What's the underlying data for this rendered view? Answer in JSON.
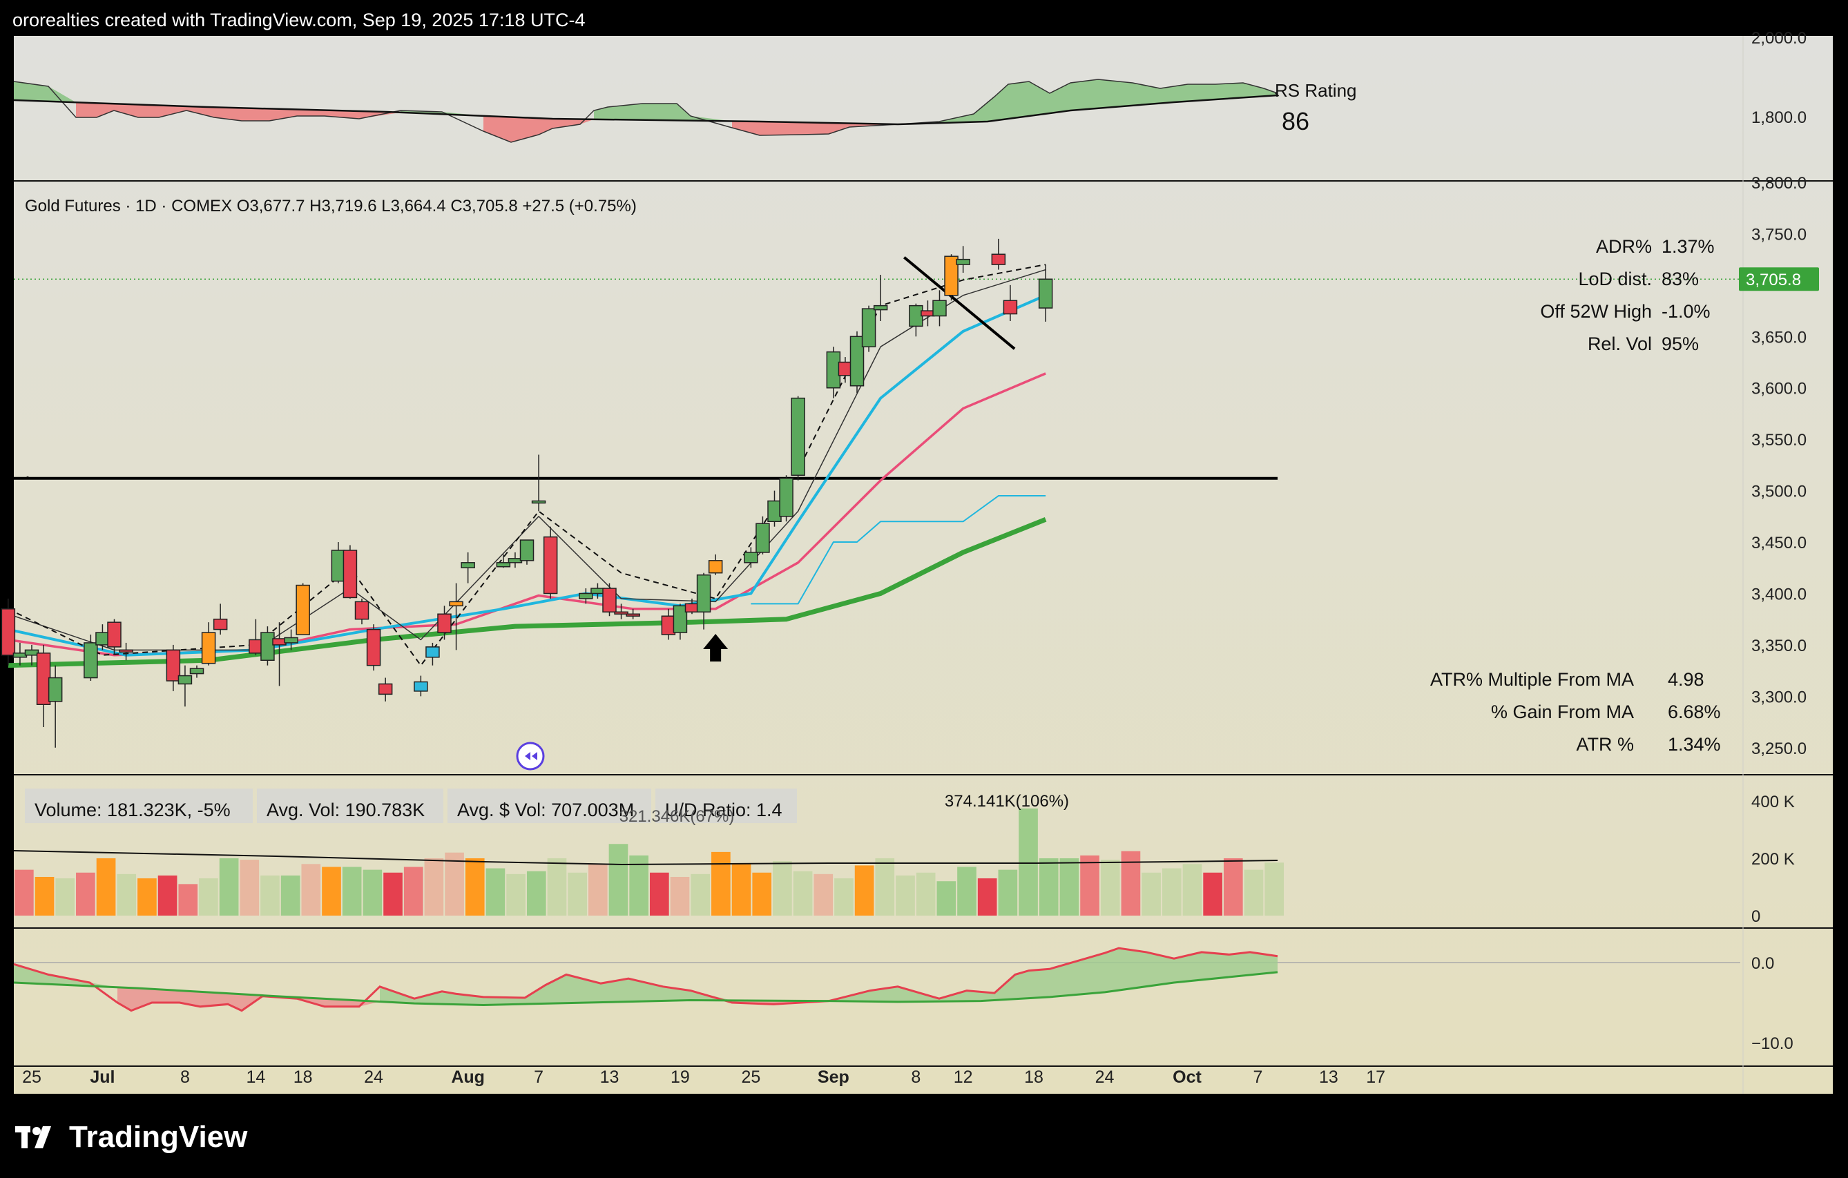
{
  "header": {
    "credit": "ororealties created with TradingView.com, Sep 19, 2025 17:18 UTC-4"
  },
  "brand": {
    "name": "TradingView",
    "icon": "tradingview-logo-icon"
  },
  "colors": {
    "bull_candle": "#5ba85c",
    "bear_candle": "#e5404f",
    "orange_candle": "#ff9a1f",
    "cyan_candle": "#2fb8dc",
    "ma_black": "#000000",
    "ma_cyan": "#1fb6de",
    "ma_pink": "#ea4d78",
    "ma_green": "#3aa33a",
    "price_tag": "#3aa33a"
  },
  "rs_panel": {
    "label": "RS Rating",
    "value": "86",
    "ticks": [
      "2,000.0",
      "1,800.0"
    ]
  },
  "price_panel": {
    "legend": "Gold Futures · 1D · COMEX  O3,677.7  H3,719.6  L3,664.4  C3,705.8  +27.5 (+0.75%)",
    "last_price_tag": "3,705.8",
    "ticks": [
      "3,800.0",
      "3,750.0",
      "3,650.0",
      "3,600.0",
      "3,550.0",
      "3,500.0",
      "3,450.0",
      "3,400.0",
      "3,350.0",
      "3,300.0",
      "3,250.0"
    ],
    "stats_top": [
      {
        "label": "ADR%",
        "value": "1.37%"
      },
      {
        "label": "LoD dist.",
        "value": "83%"
      },
      {
        "label": "Off 52W High",
        "value": "-1.0%"
      },
      {
        "label": "Rel. Vol",
        "value": "95%"
      }
    ],
    "stats_bottom": [
      {
        "label": "ATR% Multiple From MA",
        "value": "4.98"
      },
      {
        "label": "% Gain From MA",
        "value": "6.68%"
      },
      {
        "label": "ATR %",
        "value": "1.34%"
      }
    ]
  },
  "volume_panel": {
    "boxes": [
      "Volume: 181.323K, -5%",
      "Avg. Vol: 190.783K",
      "Avg. $ Vol: 707.003M",
      "U/D Ratio: 1.4"
    ],
    "annotation_max": "374.141K(106%)",
    "annotation_aug": "321.346K(67%)",
    "ticks": [
      "400 K",
      "200 K",
      "0"
    ]
  },
  "osc_panel": {
    "ticks": [
      "0.0",
      "−10.0"
    ]
  },
  "time_axis": [
    "25",
    "Jul",
    "8",
    "14",
    "18",
    "24",
    "Aug",
    "7",
    "13",
    "19",
    "25",
    "Sep",
    "8",
    "12",
    "18",
    "24",
    "Oct",
    "7",
    "13",
    "17"
  ],
  "chart_data": {
    "type": "candlestick",
    "title": "Gold Futures · 1D · COMEX",
    "ohlc": {
      "columns": [
        "date",
        "open",
        "high",
        "low",
        "close"
      ],
      "rows": [
        [
          "2025-06-23",
          3385,
          3395,
          3330,
          3340
        ],
        [
          "2025-06-24",
          3338,
          3352,
          3330,
          3342
        ],
        [
          "2025-06-25",
          3340,
          3350,
          3330,
          3345
        ],
        [
          "2025-06-26",
          3342,
          3350,
          3270,
          3292
        ],
        [
          "2025-06-27",
          3295,
          3330,
          3250,
          3318
        ],
        [
          "2025-06-30",
          3318,
          3360,
          3315,
          3352
        ],
        [
          "2025-07-01",
          3350,
          3370,
          3345,
          3362
        ],
        [
          "2025-07-02",
          3372,
          3375,
          3340,
          3348
        ],
        [
          "2025-07-03",
          3345,
          3352,
          3335,
          3343
        ],
        [
          "2025-07-07",
          3345,
          3350,
          3305,
          3315
        ],
        [
          "2025-07-08",
          3312,
          3330,
          3290,
          3320
        ],
        [
          "2025-07-09",
          3322,
          3330,
          3318,
          3327
        ],
        [
          "2025-07-10",
          3332,
          3372,
          3330,
          3362
        ],
        [
          "2025-07-11",
          3375,
          3390,
          3360,
          3365
        ],
        [
          "2025-07-14",
          3355,
          3375,
          3340,
          3342
        ],
        [
          "2025-07-15",
          3335,
          3368,
          3330,
          3362
        ],
        [
          "2025-07-16",
          3356,
          3372,
          3310,
          3350
        ],
        [
          "2025-07-17",
          3352,
          3365,
          3345,
          3357
        ],
        [
          "2025-07-18",
          3360,
          3410,
          3360,
          3408
        ],
        [
          "2025-07-21",
          3412,
          3450,
          3410,
          3442
        ],
        [
          "2025-07-22",
          3442,
          3447,
          3395,
          3396
        ],
        [
          "2025-07-23",
          3392,
          3395,
          3370,
          3375
        ],
        [
          "2025-07-24",
          3365,
          3370,
          3325,
          3330
        ],
        [
          "2025-07-25",
          3312,
          3318,
          3295,
          3302
        ],
        [
          "2025-07-28",
          3305,
          3320,
          3300,
          3314
        ],
        [
          "2025-07-29",
          3348,
          3352,
          3330,
          3338
        ],
        [
          "2025-07-30",
          3380,
          3388,
          3355,
          3362
        ],
        [
          "2025-07-31",
          3388,
          3410,
          3345,
          3392
        ],
        [
          "2025-08-01",
          3425,
          3440,
          3410,
          3430
        ],
        [
          "2025-08-04",
          3426,
          3438,
          3425,
          3430
        ],
        [
          "2025-08-05",
          3430,
          3440,
          3425,
          3434
        ],
        [
          "2025-08-06",
          3432,
          3445,
          3428,
          3452
        ],
        [
          "2025-08-07",
          3490,
          3535,
          3480,
          3490
        ],
        [
          "2025-08-08",
          3455,
          3465,
          3395,
          3400
        ],
        [
          "2025-08-11",
          3395,
          3405,
          3390,
          3400
        ],
        [
          "2025-08-12",
          3400,
          3410,
          3395,
          3405
        ],
        [
          "2025-08-13",
          3405,
          3410,
          3378,
          3382
        ],
        [
          "2025-08-14",
          3382,
          3390,
          3375,
          3380
        ],
        [
          "2025-08-15",
          3380,
          3385,
          3375,
          3378
        ],
        [
          "2025-08-18",
          3378,
          3385,
          3355,
          3360
        ],
        [
          "2025-08-19",
          3362,
          3390,
          3355,
          3388
        ],
        [
          "2025-08-20",
          3390,
          3395,
          3380,
          3382
        ],
        [
          "2025-08-21",
          3382,
          3420,
          3365,
          3418
        ],
        [
          "2025-08-22",
          3420,
          3438,
          3418,
          3432
        ],
        [
          "2025-08-25",
          3430,
          3445,
          3425,
          3440
        ],
        [
          "2025-08-26",
          3440,
          3475,
          3438,
          3468
        ],
        [
          "2025-08-27",
          3470,
          3500,
          3465,
          3490
        ],
        [
          "2025-08-28",
          3475,
          3515,
          3470,
          3512
        ],
        [
          "2025-08-29",
          3515,
          3592,
          3510,
          3590
        ],
        [
          "2025-09-01",
          3600,
          3640,
          3590,
          3635
        ],
        [
          "2025-09-02",
          3625,
          3630,
          3605,
          3612
        ],
        [
          "2025-09-03",
          3602,
          3655,
          3595,
          3650
        ],
        [
          "2025-09-04",
          3640,
          3680,
          3635,
          3677
        ],
        [
          "2025-09-05",
          3676,
          3710,
          3665,
          3680
        ],
        [
          "2025-09-08",
          3660,
          3682,
          3650,
          3680
        ],
        [
          "2025-09-09",
          3675,
          3685,
          3660,
          3670
        ],
        [
          "2025-09-10",
          3670,
          3695,
          3660,
          3685
        ],
        [
          "2025-09-11",
          3690,
          3730,
          3685,
          3728
        ],
        [
          "2025-09-12",
          3720,
          3738,
          3712,
          3725
        ],
        [
          "2025-09-15",
          3730,
          3745,
          3715,
          3720
        ],
        [
          "2025-09-16",
          3685,
          3700,
          3665,
          3672
        ],
        [
          "2025-09-19",
          3677.7,
          3719.6,
          3664.4,
          3705.8
        ]
      ]
    },
    "horizontal_line": 3512,
    "stats": {
      "ADR%": "1.37%",
      "LoD dist.": "83%",
      "Off 52W High": "-1.0%",
      "Rel. Vol": "95%"
    },
    "ylim": [
      3225,
      3800
    ],
    "last_close": 3705.8
  }
}
